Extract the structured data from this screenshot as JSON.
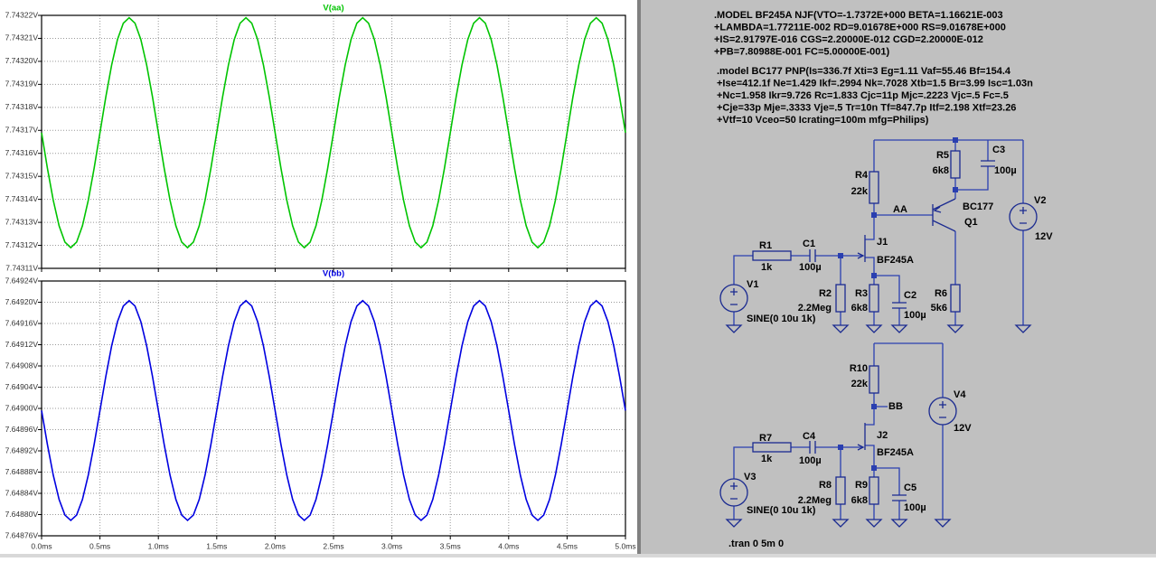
{
  "chart_data": [
    {
      "type": "line",
      "x": [
        0,
        0.05,
        0.1,
        0.15,
        0.2,
        0.25,
        0.3,
        0.35,
        0.4,
        0.45,
        0.5,
        0.55,
        0.6,
        0.65,
        0.7,
        0.75,
        0.8,
        0.85,
        0.9,
        0.95,
        1,
        1.05,
        1.1,
        1.15,
        1.2,
        1.25,
        1.3,
        1.35,
        1.4,
        1.45,
        1.5,
        1.55,
        1.6,
        1.65,
        1.7,
        1.75,
        1.8,
        1.85,
        1.9,
        1.95,
        2,
        2.05,
        2.1,
        2.15,
        2.2,
        2.25,
        2.3,
        2.35,
        2.4,
        2.45,
        2.5,
        2.55,
        2.6,
        2.65,
        2.7,
        2.75,
        2.8,
        2.85,
        2.9,
        2.95,
        3,
        3.05,
        3.1,
        3.15,
        3.2,
        3.25,
        3.3,
        3.35,
        3.4,
        3.45,
        3.5,
        3.55,
        3.6,
        3.65,
        3.7,
        3.75,
        3.8,
        3.85,
        3.9,
        3.95,
        4,
        4.05,
        4.1,
        4.15,
        4.2,
        4.25,
        4.3,
        4.35,
        4.4,
        4.45,
        4.5,
        4.55,
        4.6,
        4.65,
        4.7,
        4.75,
        4.8,
        4.85,
        4.9,
        4.95,
        5
      ],
      "series": [
        {
          "name": "V(aa)",
          "color": "#00c400",
          "values": [
            7.743169,
            7.7431535,
            7.7431396,
            7.7431285,
            7.7431214,
            7.743119,
            7.7431214,
            7.7431285,
            7.7431396,
            7.7431535,
            7.743169,
            7.7431845,
            7.7431984,
            7.7432095,
            7.7432166,
            7.743219,
            7.7432166,
            7.7432095,
            7.7431984,
            7.7431845,
            7.743169,
            7.7431535,
            7.7431396,
            7.7431285,
            7.7431214,
            7.743119,
            7.7431214,
            7.7431285,
            7.7431396,
            7.7431535,
            7.743169,
            7.7431845,
            7.7431984,
            7.7432095,
            7.7432166,
            7.743219,
            7.7432166,
            7.7432095,
            7.7431984,
            7.7431845,
            7.743169,
            7.7431535,
            7.7431396,
            7.7431285,
            7.7431214,
            7.743119,
            7.7431214,
            7.7431285,
            7.7431396,
            7.7431535,
            7.743169,
            7.7431845,
            7.7431984,
            7.7432095,
            7.7432166,
            7.743219,
            7.7432166,
            7.7432095,
            7.7431984,
            7.7431845,
            7.743169,
            7.7431535,
            7.7431396,
            7.7431285,
            7.7431214,
            7.743119,
            7.7431214,
            7.7431285,
            7.7431396,
            7.7431535,
            7.743169,
            7.7431845,
            7.7431984,
            7.7432095,
            7.7432166,
            7.743219,
            7.7432166,
            7.7432095,
            7.7431984,
            7.7431845,
            7.743169,
            7.7431535,
            7.7431396,
            7.7431285,
            7.7431214,
            7.743119,
            7.7431214,
            7.7431285,
            7.7431396,
            7.7431535,
            7.743169,
            7.7431845,
            7.7431984,
            7.7432095,
            7.7432166,
            7.743219,
            7.7432166,
            7.7432095,
            7.7431984,
            7.7431845,
            7.743169
          ]
        }
      ],
      "xlim": [
        0,
        5
      ],
      "xticks": [
        0,
        0.5,
        1,
        1.5,
        2,
        2.5,
        3,
        3.5,
        4,
        4.5,
        5
      ],
      "ylim": [
        7.74311,
        7.74322
      ],
      "yticks": [
        {
          "value": 7.74311,
          "label": "7.74311V"
        },
        {
          "value": 7.74312,
          "label": "7.74312V"
        },
        {
          "value": 7.74313,
          "label": "7.74313V"
        },
        {
          "value": 7.74314,
          "label": "7.74314V"
        },
        {
          "value": 7.74315,
          "label": "7.74315V"
        },
        {
          "value": 7.74316,
          "label": "7.74316V"
        },
        {
          "value": 7.74317,
          "label": "7.74317V"
        },
        {
          "value": 7.74318,
          "label": "7.74318V"
        },
        {
          "value": 7.74319,
          "label": "7.74319V"
        },
        {
          "value": 7.7432,
          "label": "7.74320V"
        },
        {
          "value": 7.74321,
          "label": "7.74321V"
        },
        {
          "value": 7.74322,
          "label": "7.74322V"
        }
      ],
      "grid": true
    },
    {
      "type": "line",
      "x": [
        0,
        0.05,
        0.1,
        0.15,
        0.2,
        0.25,
        0.3,
        0.35,
        0.4,
        0.45,
        0.5,
        0.55,
        0.6,
        0.65,
        0.7,
        0.75,
        0.8,
        0.85,
        0.9,
        0.95,
        1,
        1.05,
        1.1,
        1.15,
        1.2,
        1.25,
        1.3,
        1.35,
        1.4,
        1.45,
        1.5,
        1.55,
        1.6,
        1.65,
        1.7,
        1.75,
        1.8,
        1.85,
        1.9,
        1.95,
        2,
        2.05,
        2.1,
        2.15,
        2.2,
        2.25,
        2.3,
        2.35,
        2.4,
        2.45,
        2.5,
        2.55,
        2.6,
        2.65,
        2.7,
        2.75,
        2.8,
        2.85,
        2.9,
        2.95,
        3,
        3.05,
        3.1,
        3.15,
        3.2,
        3.25,
        3.3,
        3.35,
        3.4,
        3.45,
        3.5,
        3.55,
        3.6,
        3.65,
        3.7,
        3.75,
        3.8,
        3.85,
        3.9,
        3.95,
        4,
        4.05,
        4.1,
        4.15,
        4.2,
        4.25,
        4.3,
        4.35,
        4.4,
        4.45,
        4.5,
        4.55,
        4.6,
        4.65,
        4.7,
        4.75,
        4.8,
        4.85,
        4.9,
        4.95,
        5
      ],
      "series": [
        {
          "name": "V(bb)",
          "color": "#0000e0",
          "values": [
            7.648996,
            7.648932,
            7.6488743,
            7.6488285,
            7.6487991,
            7.648789,
            7.6487991,
            7.6488285,
            7.6488743,
            7.648932,
            7.648996,
            7.64906,
            7.6491177,
            7.6491635,
            7.6491929,
            7.649203,
            7.6491929,
            7.6491635,
            7.6491177,
            7.64906,
            7.648996,
            7.648932,
            7.6488743,
            7.6488285,
            7.6487991,
            7.648789,
            7.6487991,
            7.6488285,
            7.6488743,
            7.648932,
            7.648996,
            7.64906,
            7.6491177,
            7.6491635,
            7.6491929,
            7.649203,
            7.6491929,
            7.6491635,
            7.6491177,
            7.64906,
            7.648996,
            7.648932,
            7.6488743,
            7.6488285,
            7.6487991,
            7.648789,
            7.6487991,
            7.6488285,
            7.6488743,
            7.648932,
            7.648996,
            7.64906,
            7.6491177,
            7.6491635,
            7.6491929,
            7.649203,
            7.6491929,
            7.6491635,
            7.6491177,
            7.64906,
            7.648996,
            7.648932,
            7.6488743,
            7.6488285,
            7.6487991,
            7.648789,
            7.6487991,
            7.6488285,
            7.6488743,
            7.648932,
            7.648996,
            7.64906,
            7.6491177,
            7.6491635,
            7.6491929,
            7.649203,
            7.6491929,
            7.6491635,
            7.6491177,
            7.64906,
            7.648996,
            7.648932,
            7.6488743,
            7.6488285,
            7.6487991,
            7.648789,
            7.6487991,
            7.6488285,
            7.6488743,
            7.648932,
            7.648996,
            7.64906,
            7.6491177,
            7.6491635,
            7.6491929,
            7.649203,
            7.6491929,
            7.6491635,
            7.6491177,
            7.64906,
            7.648996
          ]
        }
      ],
      "xlim": [
        0,
        5
      ],
      "xticks": [
        {
          "value": 0,
          "label": "0.0ms"
        },
        {
          "value": 0.5,
          "label": "0.5ms"
        },
        {
          "value": 1,
          "label": "1.0ms"
        },
        {
          "value": 1.5,
          "label": "1.5ms"
        },
        {
          "value": 2,
          "label": "2.0ms"
        },
        {
          "value": 2.5,
          "label": "2.5ms"
        },
        {
          "value": 3,
          "label": "3.0ms"
        },
        {
          "value": 3.5,
          "label": "3.5ms"
        },
        {
          "value": 4,
          "label": "4.0ms"
        },
        {
          "value": 4.5,
          "label": "4.5ms"
        },
        {
          "value": 5,
          "label": "5.0ms"
        }
      ],
      "ylim": [
        7.64876,
        7.64924
      ],
      "yticks": [
        {
          "value": 7.64876,
          "label": "7.64876V"
        },
        {
          "value": 7.6488,
          "label": "7.64880V"
        },
        {
          "value": 7.64884,
          "label": "7.64884V"
        },
        {
          "value": 7.64888,
          "label": "7.64888V"
        },
        {
          "value": 7.64892,
          "label": "7.64892V"
        },
        {
          "value": 7.64896,
          "label": "7.64896V"
        },
        {
          "value": 7.649,
          "label": "7.64900V"
        },
        {
          "value": 7.64904,
          "label": "7.64904V"
        },
        {
          "value": 7.64908,
          "label": "7.64908V"
        },
        {
          "value": 7.64912,
          "label": "7.64912V"
        },
        {
          "value": 7.64916,
          "label": "7.64916V"
        },
        {
          "value": 7.6492,
          "label": "7.64920V"
        },
        {
          "value": 7.64924,
          "label": "7.64924V"
        }
      ],
      "grid": true
    }
  ],
  "schematic": {
    "directives": [
      ".MODEL BF245A NJF(VTO=-1.7372E+000 BETA=1.16621E-003",
      "+LAMBDA=1.77211E-002 RD=9.01678E+000 RS=9.01678E+000",
      "+IS=2.91797E-016 CGS=2.20000E-012 CGD=2.20000E-012",
      "+PB=7.80988E-001 FC=5.00000E-001)",
      ".model BC177 PNP(Is=336.7f Xti=3 Eg=1.11 Vaf=55.46 Bf=154.4",
      "+Ise=412.1f Ne=1.429 Ikf=.2994 Nk=.7028 Xtb=1.5 Br=3.99 Isc=1.03n",
      "+Nc=1.958 Ikr=9.726 Rc=1.833 Cjc=11p Mjc=.2223 Vjc=.5 Fc=.5",
      "+Cje=33p Mje=.3333 Vje=.5 Tr=10n Tf=847.7p Itf=2.198 Xtf=23.26",
      "+Vtf=10 Vceo=50 Icrating=100m mfg=Philips)"
    ],
    "components": [
      {
        "ref": "R5",
        "value": "6k8"
      },
      {
        "ref": "C3",
        "value": "100µ"
      },
      {
        "ref": "R4",
        "value": "22k"
      },
      {
        "ref": "Q1",
        "value": "BC177"
      },
      {
        "ref": "V2",
        "value": "12V"
      },
      {
        "ref": "R1",
        "value": "1k"
      },
      {
        "ref": "C1",
        "value": "100µ"
      },
      {
        "ref": "J1",
        "value": "BF245A"
      },
      {
        "ref": "V1",
        "value": "SINE(0 10u 1k)"
      },
      {
        "ref": "R2",
        "value": "2.2Meg"
      },
      {
        "ref": "R3",
        "value": "6k8"
      },
      {
        "ref": "C2",
        "value": "100µ"
      },
      {
        "ref": "R6",
        "value": "5k6"
      },
      {
        "ref": "R10",
        "value": "22k"
      },
      {
        "ref": "V4",
        "value": "12V"
      },
      {
        "ref": "R7",
        "value": "1k"
      },
      {
        "ref": "C4",
        "value": "100µ"
      },
      {
        "ref": "J2",
        "value": "BF245A"
      },
      {
        "ref": "V3",
        "value": "SINE(0 10u 1k)"
      },
      {
        "ref": "R8",
        "value": "2.2Meg"
      },
      {
        "ref": "R9",
        "value": "6k8"
      },
      {
        "ref": "C5",
        "value": "100µ"
      }
    ],
    "net_labels": [
      "AA",
      "BB"
    ],
    "command": ".tran 0 5m 0"
  }
}
